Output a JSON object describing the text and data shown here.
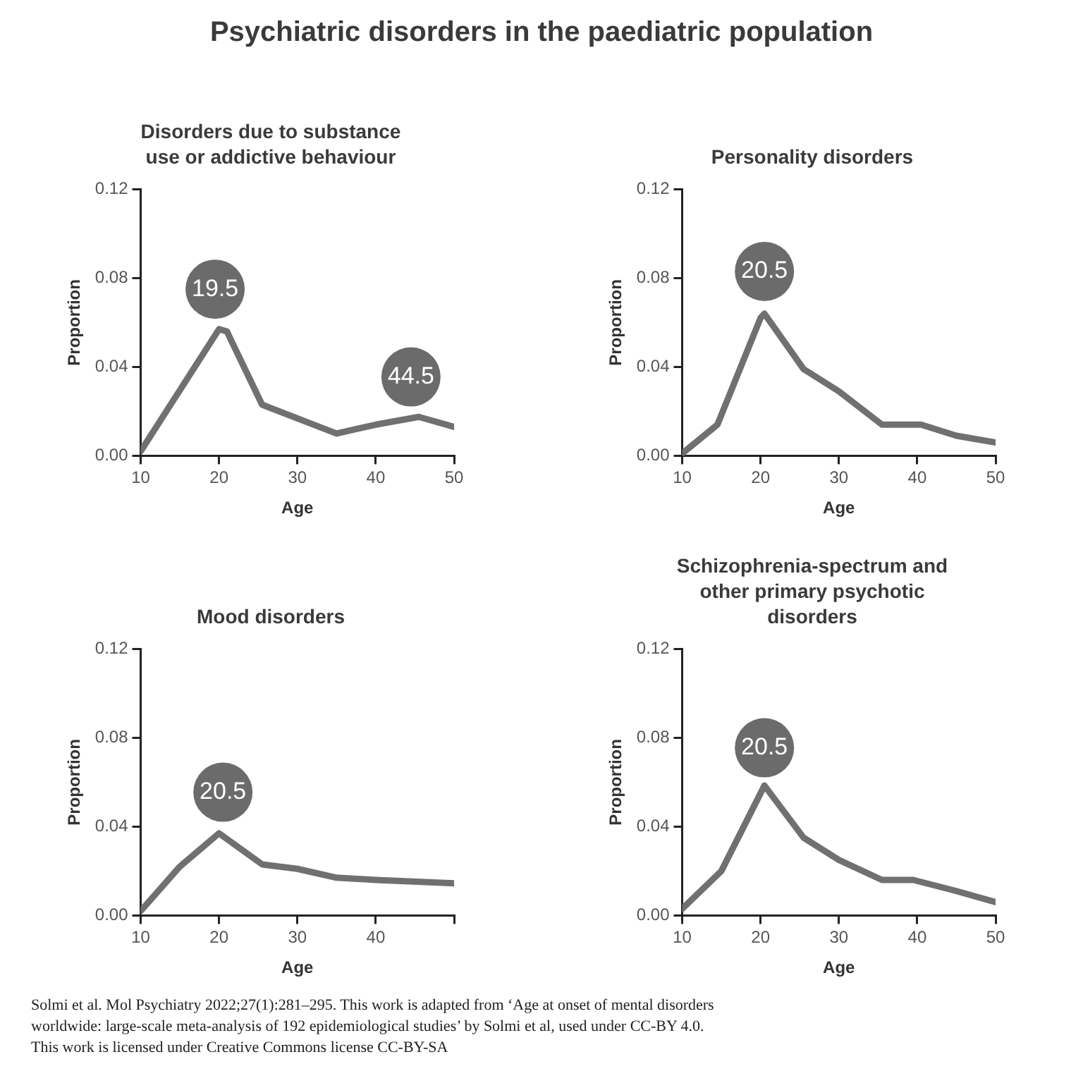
{
  "chart_data": [
    {
      "type": "line",
      "title": "Psychiatric disorders in the paediatric population",
      "subtitle": "Disorders due to substance use or addictive behaviour",
      "xlabel": "Age",
      "ylabel": "Proportion",
      "x": [
        10,
        20,
        21,
        25.5,
        35,
        40,
        45.5,
        50
      ],
      "series": [
        {
          "color": "#707070",
          "values": [
            0.002,
            0.057,
            0.056,
            0.023,
            0.01,
            0.014,
            0.0175,
            0.013
          ]
        }
      ],
      "xlim": [
        10,
        50
      ],
      "xticks": [
        10,
        20,
        30,
        40,
        50
      ],
      "ylim": [
        0,
        0.12
      ],
      "yticks": [
        {
          "value": 0,
          "label": "0.00"
        },
        {
          "value": 0.04,
          "label": "0.04"
        },
        {
          "value": 0.08,
          "label": "0.08"
        },
        {
          "value": 0.12,
          "label": "0.12"
        }
      ],
      "annotations": [
        {
          "text": "19.5",
          "x": 19.5,
          "y": 0.075
        },
        {
          "text": "44.5",
          "x": 44.5,
          "y": 0.0355
        }
      ]
    },
    {
      "type": "line",
      "title": "Personality disorders",
      "xlabel": "Age",
      "ylabel": "Proportion",
      "x": [
        10,
        14.5,
        20,
        20.5,
        25.5,
        30,
        35.5,
        40.5,
        45,
        50
      ],
      "series": [
        {
          "color": "#707070",
          "values": [
            0.001,
            0.014,
            0.062,
            0.064,
            0.039,
            0.029,
            0.014,
            0.014,
            0.009,
            0.006
          ]
        }
      ],
      "xlim": [
        10,
        50
      ],
      "xticks": [
        10,
        20,
        30,
        40,
        50
      ],
      "ylim": [
        0,
        0.12
      ],
      "yticks": [
        {
          "value": 0,
          "label": "0.00"
        },
        {
          "value": 0.04,
          "label": "0.04"
        },
        {
          "value": 0.08,
          "label": "0.08"
        },
        {
          "value": 0.12,
          "label": "0.12"
        }
      ],
      "annotations": [
        {
          "text": "20.5",
          "x": 20.5,
          "y": 0.083
        }
      ]
    },
    {
      "type": "line",
      "title": "Mood disorders",
      "xlabel": "Age",
      "ylabel": "Proportion",
      "x": [
        10,
        15,
        20,
        25.5,
        30,
        35,
        40,
        50
      ],
      "series": [
        {
          "color": "#707070",
          "values": [
            0.002,
            0.022,
            0.037,
            0.023,
            0.021,
            0.017,
            0.016,
            0.0145
          ]
        }
      ],
      "xlim": [
        10,
        50
      ],
      "xticks": [
        10,
        20,
        30,
        40,
        {
          "value": 50,
          "label": null
        }
      ],
      "ylim": [
        0,
        0.12
      ],
      "yticks": [
        {
          "value": 0,
          "label": "0.00"
        },
        {
          "value": 0.04,
          "label": "0.04"
        },
        {
          "value": 0.08,
          "label": "0.08"
        },
        {
          "value": 0.12,
          "label": "0.12"
        }
      ],
      "annotations": [
        {
          "text": "20.5",
          "x": 20.5,
          "y": 0.0555
        }
      ]
    },
    {
      "type": "line",
      "title": "Schizophrenia-spectrum and other primary psychotic disorders",
      "xlabel": "Age",
      "ylabel": "Proportion",
      "x": [
        10,
        15,
        20.5,
        25.5,
        30,
        35.5,
        39.5,
        45,
        50
      ],
      "series": [
        {
          "color": "#707070",
          "values": [
            0.003,
            0.02,
            0.0585,
            0.035,
            0.025,
            0.016,
            0.016,
            0.011,
            0.006
          ]
        }
      ],
      "xlim": [
        10,
        50
      ],
      "xticks": [
        10,
        20,
        30,
        40,
        50
      ],
      "ylim": [
        0,
        0.12
      ],
      "yticks": [
        {
          "value": 0,
          "label": "0.00"
        },
        {
          "value": 0.04,
          "label": "0.04"
        },
        {
          "value": 0.08,
          "label": "0.08"
        },
        {
          "value": 0.12,
          "label": "0.12"
        }
      ],
      "annotations": [
        {
          "text": "20.5",
          "x": 20.5,
          "y": 0.0755
        },
        "Solmi et al. Mol Psychiatry 2022;27(1):281–295. This work is adapted from ‘Age at onset of mental disorders worldwide: large-scale meta-analysis of 192 epidemiological studies’ by Solmi et al, used under CC-BY 4.0. This work is licensed under Creative Commons license CC-BY-SA"
      ]
    }
  ]
}
